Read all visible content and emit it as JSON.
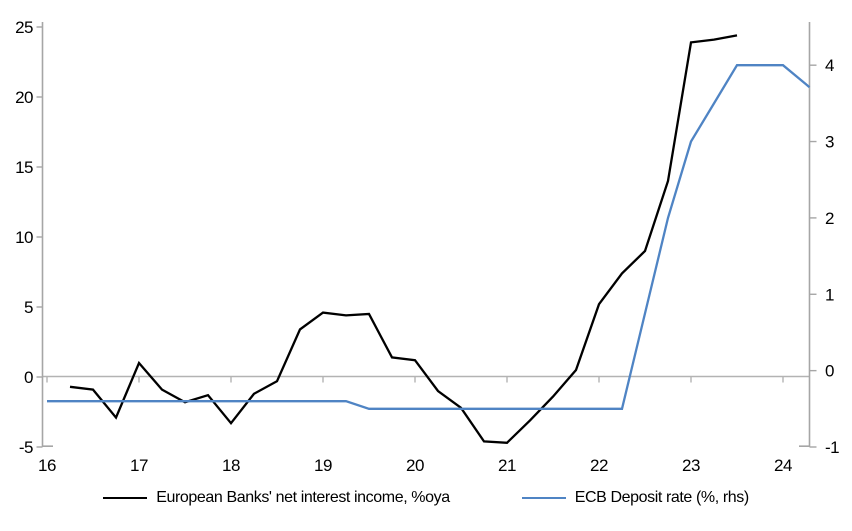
{
  "chart_data": {
    "type": "line",
    "title": "",
    "x_axis": {
      "tick_labels": [
        "16",
        "17",
        "18",
        "19",
        "20",
        "21",
        "22",
        "23",
        "24"
      ],
      "tick_values": [
        16,
        17,
        18,
        19,
        20,
        21,
        22,
        23,
        24
      ],
      "range": [
        16,
        24.3
      ],
      "unit": "year"
    },
    "left_axis": {
      "ticks": [
        -5,
        0,
        5,
        10,
        15,
        20,
        25
      ],
      "range": [
        -5,
        25
      ]
    },
    "right_axis": {
      "ticks": [
        -1,
        0,
        1,
        2,
        3,
        4
      ],
      "range": [
        -1,
        4.5
      ]
    },
    "grid": "zero-line-only",
    "legend_position": "bottom",
    "series": [
      {
        "name": "European Banks' net interest income, %oya",
        "axis": "left",
        "color": "#000000",
        "x": [
          16.25,
          16.5,
          16.75,
          17.0,
          17.25,
          17.5,
          17.75,
          18.0,
          18.25,
          18.5,
          18.75,
          19.0,
          19.25,
          19.5,
          19.75,
          20.0,
          20.25,
          20.5,
          20.75,
          21.0,
          21.25,
          21.5,
          21.75,
          22.0,
          22.25,
          22.5,
          22.75,
          23.0,
          23.25,
          23.5
        ],
        "values": [
          -0.7,
          -0.9,
          -2.9,
          1.0,
          -0.9,
          -1.8,
          -1.3,
          -3.3,
          -1.2,
          -0.3,
          3.4,
          4.6,
          4.4,
          4.5,
          1.4,
          1.2,
          -1.0,
          -2.2,
          -4.6,
          -4.7,
          -3.1,
          -1.4,
          0.5,
          5.2,
          7.4,
          9.0,
          14.0,
          23.9,
          24.1,
          24.4
        ]
      },
      {
        "name": "ECB Deposit rate (%, rhs)",
        "axis": "right",
        "color": "#4f84c4",
        "x": [
          16.0,
          16.25,
          16.5,
          16.75,
          17.0,
          17.25,
          17.5,
          17.75,
          18.0,
          18.25,
          18.5,
          18.75,
          19.0,
          19.25,
          19.5,
          19.75,
          20.0,
          20.25,
          20.5,
          20.75,
          21.0,
          21.25,
          21.5,
          21.75,
          22.0,
          22.25,
          22.5,
          22.75,
          23.0,
          23.25,
          23.5,
          23.75,
          24.0,
          24.25
        ],
        "values": [
          -0.4,
          -0.4,
          -0.4,
          -0.4,
          -0.4,
          -0.4,
          -0.4,
          -0.4,
          -0.4,
          -0.4,
          -0.4,
          -0.4,
          -0.4,
          -0.4,
          -0.5,
          -0.5,
          -0.5,
          -0.5,
          -0.5,
          -0.5,
          -0.5,
          -0.5,
          -0.5,
          -0.5,
          -0.5,
          -0.5,
          0.75,
          2.0,
          3.0,
          3.5,
          4.0,
          4.0,
          4.0,
          3.75
        ]
      }
    ]
  },
  "colors": {
    "axis_gray": "#a6a6a6",
    "zero_line_gray": "#b3b3b3",
    "text": "#000000",
    "background": "#ffffff"
  }
}
